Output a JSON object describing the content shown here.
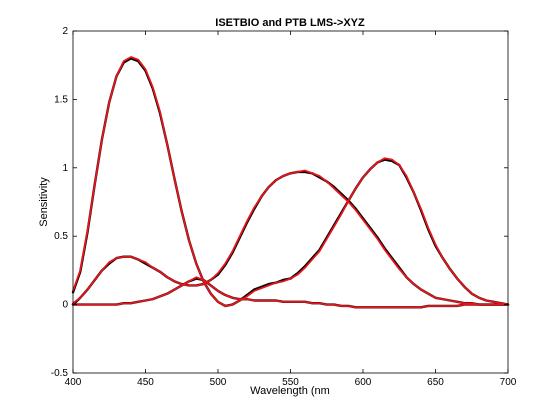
{
  "chart_data": {
    "type": "line",
    "title": "ISETBIO and PTB LMS->XYZ",
    "xlabel": "Wavelength (nm",
    "ylabel": "Sensitivity",
    "xlim": [
      400,
      700
    ],
    "ylim": [
      -0.5,
      2
    ],
    "xticks": [
      "400",
      "450",
      "500",
      "550",
      "600",
      "650",
      "700"
    ],
    "yticks": [
      "-0.5",
      "0",
      "0.5",
      "1",
      "1.5",
      "2"
    ],
    "xtick_values": [
      400,
      450,
      500,
      550,
      600,
      650,
      700
    ],
    "ytick_values": [
      -0.5,
      0,
      0.5,
      1,
      1.5,
      2
    ],
    "grid": false,
    "legend": "none",
    "x": [
      400,
      405,
      410,
      415,
      420,
      425,
      430,
      435,
      440,
      445,
      450,
      455,
      460,
      465,
      470,
      475,
      480,
      485,
      490,
      495,
      500,
      505,
      510,
      515,
      520,
      525,
      530,
      535,
      540,
      545,
      550,
      555,
      560,
      565,
      570,
      575,
      580,
      585,
      590,
      595,
      600,
      605,
      610,
      615,
      620,
      625,
      630,
      635,
      640,
      645,
      650,
      655,
      660,
      665,
      670,
      675,
      680,
      685,
      690,
      695,
      700
    ],
    "series": [
      {
        "color": "#000000",
        "curves": [
          [
            0.09,
            0.24,
            0.53,
            0.88,
            1.21,
            1.48,
            1.67,
            1.77,
            1.8,
            1.78,
            1.71,
            1.58,
            1.4,
            1.17,
            0.92,
            0.68,
            0.47,
            0.3,
            0.17,
            0.08,
            0.02,
            -0.01,
            0.0,
            0.03,
            0.07,
            0.11,
            0.13,
            0.15,
            0.16,
            0.18,
            0.19,
            0.23,
            0.28,
            0.34,
            0.4,
            0.49,
            0.58,
            0.67,
            0.76,
            0.85,
            0.93,
            0.99,
            1.04,
            1.06,
            1.05,
            1.02,
            0.93,
            0.82,
            0.69,
            0.55,
            0.43,
            0.34,
            0.26,
            0.19,
            0.13,
            0.08,
            0.05,
            0.03,
            0.02,
            0.01,
            0.0
          ],
          [
            0.0,
            0.05,
            0.11,
            0.18,
            0.25,
            0.3,
            0.34,
            0.35,
            0.35,
            0.33,
            0.3,
            0.27,
            0.24,
            0.2,
            0.17,
            0.15,
            0.14,
            0.14,
            0.15,
            0.18,
            0.22,
            0.29,
            0.38,
            0.49,
            0.6,
            0.7,
            0.79,
            0.86,
            0.91,
            0.94,
            0.96,
            0.97,
            0.97,
            0.96,
            0.93,
            0.9,
            0.86,
            0.81,
            0.76,
            0.7,
            0.63,
            0.56,
            0.49,
            0.41,
            0.34,
            0.27,
            0.2,
            0.15,
            0.11,
            0.08,
            0.05,
            0.04,
            0.03,
            0.02,
            0.01,
            0.01,
            0.0,
            0.0,
            0.0,
            0.0,
            0.0
          ],
          [
            0.0,
            0.0,
            0.0,
            0.0,
            0.0,
            0.0,
            0.0,
            0.01,
            0.01,
            0.02,
            0.03,
            0.04,
            0.06,
            0.08,
            0.11,
            0.14,
            0.17,
            0.19,
            0.18,
            0.14,
            0.1,
            0.07,
            0.05,
            0.04,
            0.04,
            0.03,
            0.03,
            0.03,
            0.03,
            0.02,
            0.02,
            0.02,
            0.02,
            0.01,
            0.01,
            0.0,
            0.0,
            -0.01,
            -0.01,
            -0.02,
            -0.02,
            -0.02,
            -0.02,
            -0.02,
            -0.02,
            -0.02,
            -0.02,
            -0.02,
            -0.02,
            -0.01,
            -0.01,
            -0.01,
            -0.01,
            -0.01,
            0.0,
            0.0,
            0.0,
            0.0,
            0.0,
            0.0,
            0.0
          ]
        ]
      },
      {
        "color": "#e8141b",
        "curves": [
          [
            0.1,
            0.25,
            0.54,
            0.88,
            1.21,
            1.48,
            1.67,
            1.78,
            1.81,
            1.79,
            1.72,
            1.59,
            1.41,
            1.17,
            0.92,
            0.68,
            0.47,
            0.3,
            0.17,
            0.08,
            0.02,
            -0.01,
            0.0,
            0.03,
            0.06,
            0.1,
            0.12,
            0.14,
            0.16,
            0.17,
            0.19,
            0.22,
            0.27,
            0.33,
            0.39,
            0.48,
            0.57,
            0.66,
            0.76,
            0.85,
            0.93,
            0.99,
            1.04,
            1.07,
            1.06,
            1.02,
            0.94,
            0.82,
            0.7,
            0.56,
            0.44,
            0.34,
            0.26,
            0.19,
            0.13,
            0.08,
            0.05,
            0.03,
            0.02,
            0.01,
            0.0
          ],
          [
            0.01,
            0.05,
            0.11,
            0.18,
            0.25,
            0.31,
            0.34,
            0.35,
            0.35,
            0.33,
            0.31,
            0.27,
            0.24,
            0.2,
            0.17,
            0.15,
            0.14,
            0.14,
            0.15,
            0.18,
            0.23,
            0.3,
            0.39,
            0.5,
            0.61,
            0.71,
            0.79,
            0.86,
            0.91,
            0.94,
            0.96,
            0.97,
            0.98,
            0.96,
            0.94,
            0.9,
            0.85,
            0.8,
            0.75,
            0.69,
            0.62,
            0.55,
            0.48,
            0.4,
            0.33,
            0.26,
            0.2,
            0.15,
            0.11,
            0.08,
            0.05,
            0.04,
            0.03,
            0.02,
            0.01,
            0.01,
            0.0,
            0.0,
            0.0,
            0.0,
            0.0
          ],
          [
            0.0,
            0.0,
            0.0,
            0.0,
            0.0,
            0.0,
            0.0,
            0.01,
            0.01,
            0.02,
            0.03,
            0.04,
            0.06,
            0.08,
            0.11,
            0.14,
            0.17,
            0.2,
            0.18,
            0.14,
            0.1,
            0.07,
            0.05,
            0.04,
            0.04,
            0.03,
            0.03,
            0.03,
            0.03,
            0.02,
            0.02,
            0.02,
            0.02,
            0.01,
            0.01,
            0.0,
            0.0,
            -0.01,
            -0.01,
            -0.02,
            -0.02,
            -0.02,
            -0.02,
            -0.02,
            -0.02,
            -0.02,
            -0.02,
            -0.02,
            -0.02,
            -0.01,
            -0.01,
            -0.01,
            -0.01,
            -0.01,
            0.0,
            0.0,
            0.0,
            0.0,
            0.0,
            0.0,
            0.0
          ]
        ]
      }
    ]
  }
}
